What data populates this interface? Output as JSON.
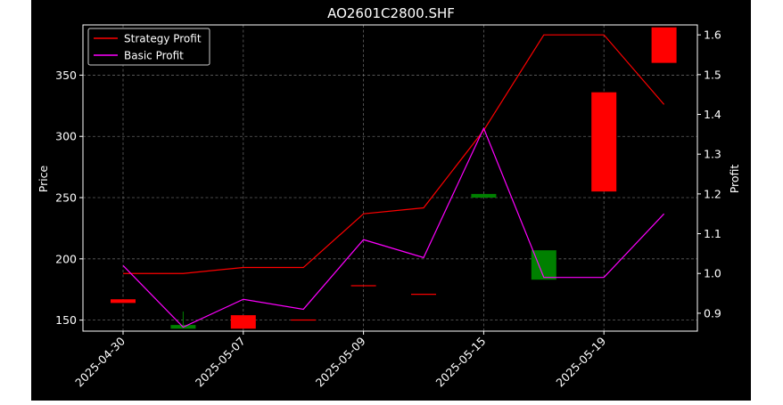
{
  "chart_data": {
    "type": "candlestick",
    "title": "AO2601C2800.SHF",
    "ylabel_left": "Price",
    "ylabel_right": "Profit",
    "y_left_ticks": [
      150,
      200,
      250,
      300,
      350
    ],
    "y_right_ticks": [
      "0.9",
      "1.0",
      "1.1",
      "1.2",
      "1.3",
      "1.4",
      "1.5",
      "1.6"
    ],
    "ylim_left": [
      141,
      391
    ],
    "ylim_right": [
      0.855,
      1.625
    ],
    "x_ticks": [
      {
        "date": "2025-04-30",
        "label": "2025-04-30"
      },
      {
        "date": "2025-05-07",
        "label": "2025-05-07"
      },
      {
        "date": "2025-05-09",
        "label": "2025-05-09"
      },
      {
        "date": "2025-05-15",
        "label": "2025-05-15"
      },
      {
        "date": "2025-05-19",
        "label": "2025-05-19"
      }
    ],
    "grid": true,
    "legend_position": "top-left",
    "candles": [
      {
        "slot": 0,
        "open": 164,
        "close": 167,
        "high": 167,
        "low": 164,
        "color": "red"
      },
      {
        "slot": 1,
        "open": 146,
        "close": 143,
        "high": 157,
        "low": 143,
        "color": "green"
      },
      {
        "slot": 2,
        "open": 143,
        "close": 154,
        "high": 154,
        "low": 143,
        "color": "red"
      },
      {
        "slot": 3,
        "open": 150,
        "close": 150.5,
        "high": 150.5,
        "low": 150,
        "color": "red"
      },
      {
        "slot": 4,
        "open": 178,
        "close": 178.5,
        "high": 178.5,
        "low": 178,
        "color": "red"
      },
      {
        "slot": 5,
        "open": 171,
        "close": 171.5,
        "high": 171.5,
        "low": 171,
        "color": "red"
      },
      {
        "slot": 6,
        "open": 253,
        "close": 250,
        "high": 253,
        "low": 250,
        "color": "green"
      },
      {
        "slot": 7,
        "open": 207,
        "close": 183,
        "high": 207,
        "low": 183,
        "color": "green"
      },
      {
        "slot": 8,
        "open": 255,
        "close": 336,
        "high": 336,
        "low": 255,
        "color": "red"
      },
      {
        "slot": 9,
        "open": 360,
        "close": 389,
        "high": 389,
        "low": 360,
        "color": "red"
      }
    ],
    "series": [
      {
        "name": "Strategy Profit",
        "color": "#ff0000",
        "slots": [
          0,
          1,
          2,
          3,
          4,
          5,
          6,
          7,
          8,
          9
        ],
        "values": [
          1.0,
          1.0,
          1.015,
          1.015,
          1.15,
          1.165,
          1.36,
          1.6,
          1.6,
          1.425
        ]
      },
      {
        "name": "Basic Profit",
        "color": "#ff00ff",
        "slots": [
          0,
          1,
          2,
          3,
          4,
          5,
          6,
          7,
          8,
          9
        ],
        "values": [
          1.02,
          0.865,
          0.935,
          0.91,
          1.085,
          1.04,
          1.365,
          0.99,
          0.99,
          1.15
        ]
      }
    ]
  }
}
